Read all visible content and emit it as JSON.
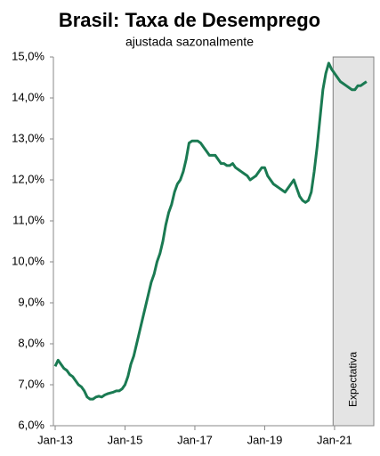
{
  "chart_data": {
    "type": "line",
    "title": "Brasil: Taxa de Desemprego",
    "subtitle": "ajustada sazonalmente",
    "categories": [
      "Jan-13",
      null,
      null,
      null,
      null,
      null,
      null,
      null,
      null,
      null,
      null,
      null,
      null,
      null,
      null,
      null,
      null,
      null,
      null,
      null,
      null,
      null,
      null,
      null,
      "Jan-15",
      null,
      null,
      null,
      null,
      null,
      null,
      null,
      null,
      null,
      null,
      null,
      null,
      null,
      null,
      null,
      null,
      null,
      null,
      null,
      null,
      null,
      null,
      null,
      "Jan-17",
      null,
      null,
      null,
      null,
      null,
      null,
      null,
      null,
      null,
      null,
      null,
      null,
      null,
      null,
      null,
      null,
      null,
      null,
      null,
      null,
      null,
      null,
      null,
      "Jan-19",
      null,
      null,
      null,
      null,
      null,
      null,
      null,
      null,
      null,
      null,
      null,
      null,
      null,
      null,
      null,
      null,
      null,
      null,
      null,
      null,
      null,
      null,
      null,
      "Jan-21",
      null,
      null,
      null,
      null,
      null,
      null,
      null,
      null,
      null,
      null,
      null
    ],
    "series": [
      {
        "name": "Taxa de Desemprego",
        "color": "#1a7a52",
        "values": [
          7.45,
          7.6,
          7.5,
          7.4,
          7.35,
          7.25,
          7.2,
          7.1,
          7.0,
          6.95,
          6.85,
          6.7,
          6.65,
          6.65,
          6.7,
          6.72,
          6.7,
          6.75,
          6.78,
          6.8,
          6.82,
          6.85,
          6.85,
          6.9,
          7.0,
          7.2,
          7.5,
          7.7,
          8.0,
          8.3,
          8.6,
          8.9,
          9.2,
          9.5,
          9.7,
          10.0,
          10.2,
          10.5,
          10.9,
          11.2,
          11.4,
          11.7,
          11.9,
          12.0,
          12.2,
          12.5,
          12.9,
          12.95,
          12.95,
          12.95,
          12.9,
          12.8,
          12.7,
          12.6,
          12.6,
          12.6,
          12.5,
          12.4,
          12.4,
          12.35,
          12.35,
          12.4,
          12.3,
          12.25,
          12.2,
          12.15,
          12.1,
          12.0,
          12.05,
          12.1,
          12.2,
          12.3,
          12.3,
          12.1,
          12.0,
          11.9,
          11.85,
          11.8,
          11.75,
          11.7,
          11.8,
          11.9,
          12.0,
          11.8,
          11.6,
          11.5,
          11.45,
          11.5,
          11.7,
          12.2,
          12.8,
          13.5,
          14.2,
          14.6,
          14.85,
          14.7,
          14.6,
          14.5,
          14.4,
          14.35,
          14.3,
          14.25,
          14.2,
          14.2,
          14.3,
          14.3,
          14.35,
          14.4
        ]
      }
    ],
    "ylim": [
      6,
      15
    ],
    "yticks": [
      {
        "value": 6,
        "label": "6,0%"
      },
      {
        "value": 7,
        "label": "7,0%"
      },
      {
        "value": 8,
        "label": "8,0%"
      },
      {
        "value": 9,
        "label": "9,0%"
      },
      {
        "value": 10,
        "label": "10,0%"
      },
      {
        "value": 11,
        "label": "11,0%"
      },
      {
        "value": 12,
        "label": "12,0%"
      },
      {
        "value": 13,
        "label": "13,0%"
      },
      {
        "value": 14,
        "label": "14,0%"
      },
      {
        "value": 15,
        "label": "15,0%"
      }
    ],
    "shaded_region": {
      "label": "Expectativa",
      "start_index": 95
    }
  }
}
